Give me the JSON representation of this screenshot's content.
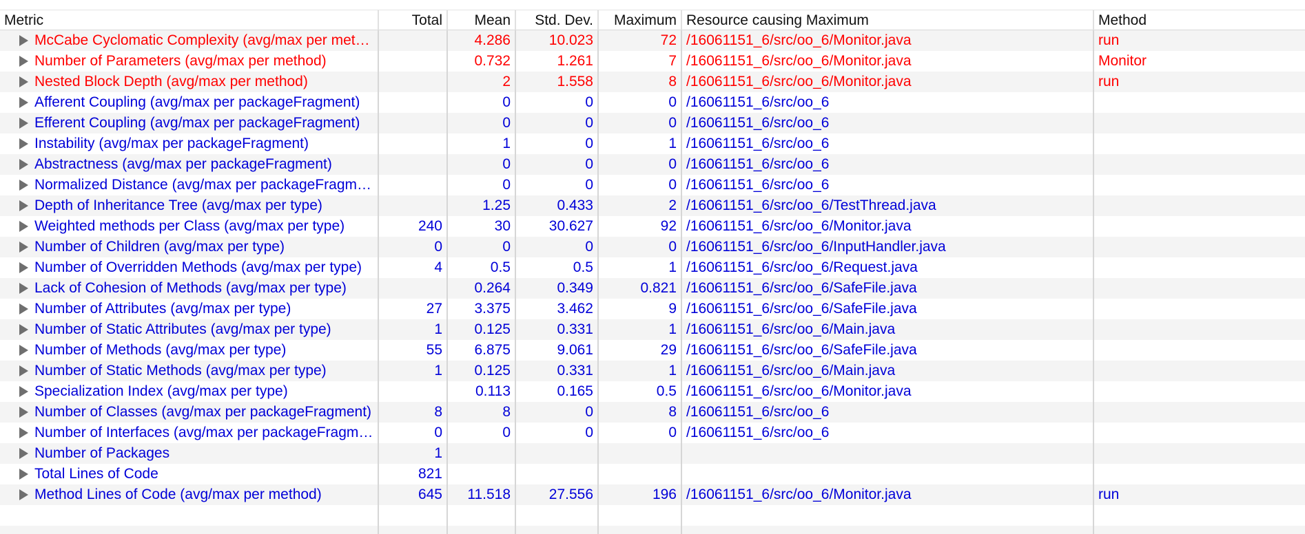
{
  "colors": {
    "violation": "#ff0000",
    "ok": "#0000d8"
  },
  "icons": {
    "expander": "disclosure-triangle-right-icon"
  },
  "columns": {
    "metric": "Metric",
    "total": "Total",
    "mean": "Mean",
    "std": "Std. Dev.",
    "max": "Maximum",
    "resource": "Resource causing Maximum",
    "method": "Method"
  },
  "rows": [
    {
      "metric": "McCabe Cyclomatic Complexity (avg/max per method)",
      "total": "",
      "mean": "4.286",
      "std": "10.023",
      "max": "72",
      "resource": "/16061151_6/src/oo_6/Monitor.java",
      "method": "run",
      "status": "red"
    },
    {
      "metric": "Number of Parameters (avg/max per method)",
      "total": "",
      "mean": "0.732",
      "std": "1.261",
      "max": "7",
      "resource": "/16061151_6/src/oo_6/Monitor.java",
      "method": "Monitor",
      "status": "red"
    },
    {
      "metric": "Nested Block Depth (avg/max per method)",
      "total": "",
      "mean": "2",
      "std": "1.558",
      "max": "8",
      "resource": "/16061151_6/src/oo_6/Monitor.java",
      "method": "run",
      "status": "red"
    },
    {
      "metric": "Afferent Coupling (avg/max per packageFragment)",
      "total": "",
      "mean": "0",
      "std": "0",
      "max": "0",
      "resource": "/16061151_6/src/oo_6",
      "method": "",
      "status": "blue"
    },
    {
      "metric": "Efferent Coupling (avg/max per packageFragment)",
      "total": "",
      "mean": "0",
      "std": "0",
      "max": "0",
      "resource": "/16061151_6/src/oo_6",
      "method": "",
      "status": "blue"
    },
    {
      "metric": "Instability (avg/max per packageFragment)",
      "total": "",
      "mean": "1",
      "std": "0",
      "max": "1",
      "resource": "/16061151_6/src/oo_6",
      "method": "",
      "status": "blue"
    },
    {
      "metric": "Abstractness (avg/max per packageFragment)",
      "total": "",
      "mean": "0",
      "std": "0",
      "max": "0",
      "resource": "/16061151_6/src/oo_6",
      "method": "",
      "status": "blue"
    },
    {
      "metric": "Normalized Distance (avg/max per packageFragment)",
      "total": "",
      "mean": "0",
      "std": "0",
      "max": "0",
      "resource": "/16061151_6/src/oo_6",
      "method": "",
      "status": "blue"
    },
    {
      "metric": "Depth of Inheritance Tree (avg/max per type)",
      "total": "",
      "mean": "1.25",
      "std": "0.433",
      "max": "2",
      "resource": "/16061151_6/src/oo_6/TestThread.java",
      "method": "",
      "status": "blue"
    },
    {
      "metric": "Weighted methods per Class (avg/max per type)",
      "total": "240",
      "mean": "30",
      "std": "30.627",
      "max": "92",
      "resource": "/16061151_6/src/oo_6/Monitor.java",
      "method": "",
      "status": "blue"
    },
    {
      "metric": "Number of Children (avg/max per type)",
      "total": "0",
      "mean": "0",
      "std": "0",
      "max": "0",
      "resource": "/16061151_6/src/oo_6/InputHandler.java",
      "method": "",
      "status": "blue"
    },
    {
      "metric": "Number of Overridden Methods (avg/max per type)",
      "total": "4",
      "mean": "0.5",
      "std": "0.5",
      "max": "1",
      "resource": "/16061151_6/src/oo_6/Request.java",
      "method": "",
      "status": "blue"
    },
    {
      "metric": "Lack of Cohesion of Methods (avg/max per type)",
      "total": "",
      "mean": "0.264",
      "std": "0.349",
      "max": "0.821",
      "resource": "/16061151_6/src/oo_6/SafeFile.java",
      "method": "",
      "status": "blue"
    },
    {
      "metric": "Number of Attributes (avg/max per type)",
      "total": "27",
      "mean": "3.375",
      "std": "3.462",
      "max": "9",
      "resource": "/16061151_6/src/oo_6/SafeFile.java",
      "method": "",
      "status": "blue"
    },
    {
      "metric": "Number of Static Attributes (avg/max per type)",
      "total": "1",
      "mean": "0.125",
      "std": "0.331",
      "max": "1",
      "resource": "/16061151_6/src/oo_6/Main.java",
      "method": "",
      "status": "blue"
    },
    {
      "metric": "Number of Methods (avg/max per type)",
      "total": "55",
      "mean": "6.875",
      "std": "9.061",
      "max": "29",
      "resource": "/16061151_6/src/oo_6/SafeFile.java",
      "method": "",
      "status": "blue"
    },
    {
      "metric": "Number of Static Methods (avg/max per type)",
      "total": "1",
      "mean": "0.125",
      "std": "0.331",
      "max": "1",
      "resource": "/16061151_6/src/oo_6/Main.java",
      "method": "",
      "status": "blue"
    },
    {
      "metric": "Specialization Index (avg/max per type)",
      "total": "",
      "mean": "0.113",
      "std": "0.165",
      "max": "0.5",
      "resource": "/16061151_6/src/oo_6/Monitor.java",
      "method": "",
      "status": "blue"
    },
    {
      "metric": "Number of Classes (avg/max per packageFragment)",
      "total": "8",
      "mean": "8",
      "std": "0",
      "max": "8",
      "resource": "/16061151_6/src/oo_6",
      "method": "",
      "status": "blue"
    },
    {
      "metric": "Number of Interfaces (avg/max per packageFragment)",
      "total": "0",
      "mean": "0",
      "std": "0",
      "max": "0",
      "resource": "/16061151_6/src/oo_6",
      "method": "",
      "status": "blue"
    },
    {
      "metric": "Number of Packages",
      "total": "1",
      "mean": "",
      "std": "",
      "max": "",
      "resource": "",
      "method": "",
      "status": "blue"
    },
    {
      "metric": "Total Lines of Code",
      "total": "821",
      "mean": "",
      "std": "",
      "max": "",
      "resource": "",
      "method": "",
      "status": "blue"
    },
    {
      "metric": "Method Lines of Code (avg/max per method)",
      "total": "645",
      "mean": "11.518",
      "std": "27.556",
      "max": "196",
      "resource": "/16061151_6/src/oo_6/Monitor.java",
      "method": "run",
      "status": "blue"
    }
  ]
}
